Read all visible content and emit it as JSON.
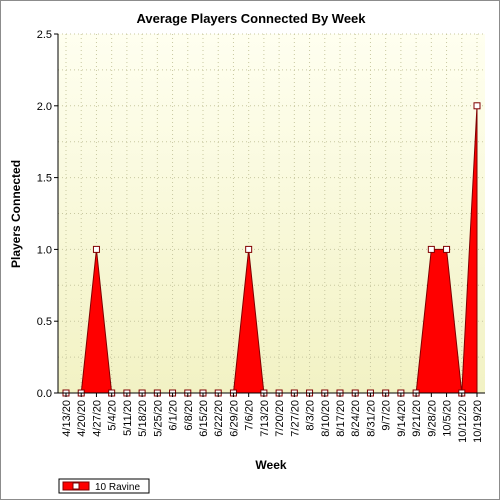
{
  "chart_data": {
    "type": "area",
    "title": "Average Players Connected By Week",
    "xlabel": "Week",
    "ylabel": "Players Connected",
    "ylim": [
      0,
      2.5
    ],
    "yticks": [
      "0.0",
      "0.5",
      "1.0",
      "1.5",
      "2.0",
      "2.5"
    ],
    "grid": true,
    "legend_position": "bottom-left",
    "categories": [
      "4/13/20",
      "4/20/20",
      "4/27/20",
      "5/4/20",
      "5/11/20",
      "5/18/20",
      "5/25/20",
      "6/1/20",
      "6/8/20",
      "6/15/20",
      "6/22/20",
      "6/29/20",
      "7/6/20",
      "7/13/20",
      "7/20/20",
      "7/27/20",
      "8/3/20",
      "8/10/20",
      "8/17/20",
      "8/24/20",
      "8/31/20",
      "9/7/20",
      "9/14/20",
      "9/21/20",
      "9/28/20",
      "10/5/20",
      "10/12/20",
      "10/19/20"
    ],
    "series": [
      {
        "name": "10 Ravine",
        "color": "#ff0000",
        "values": [
          0,
          0,
          1,
          0,
          0,
          0,
          0,
          0,
          0,
          0,
          0,
          0,
          1,
          0,
          0,
          0,
          0,
          0,
          0,
          0,
          0,
          0,
          0,
          0,
          1,
          1,
          0,
          2
        ]
      }
    ]
  },
  "colors": {
    "plot_top": "#fffff0",
    "plot_bottom": "#f2f2c4",
    "area_fill": "#ff0000",
    "area_stroke": "#800000"
  }
}
